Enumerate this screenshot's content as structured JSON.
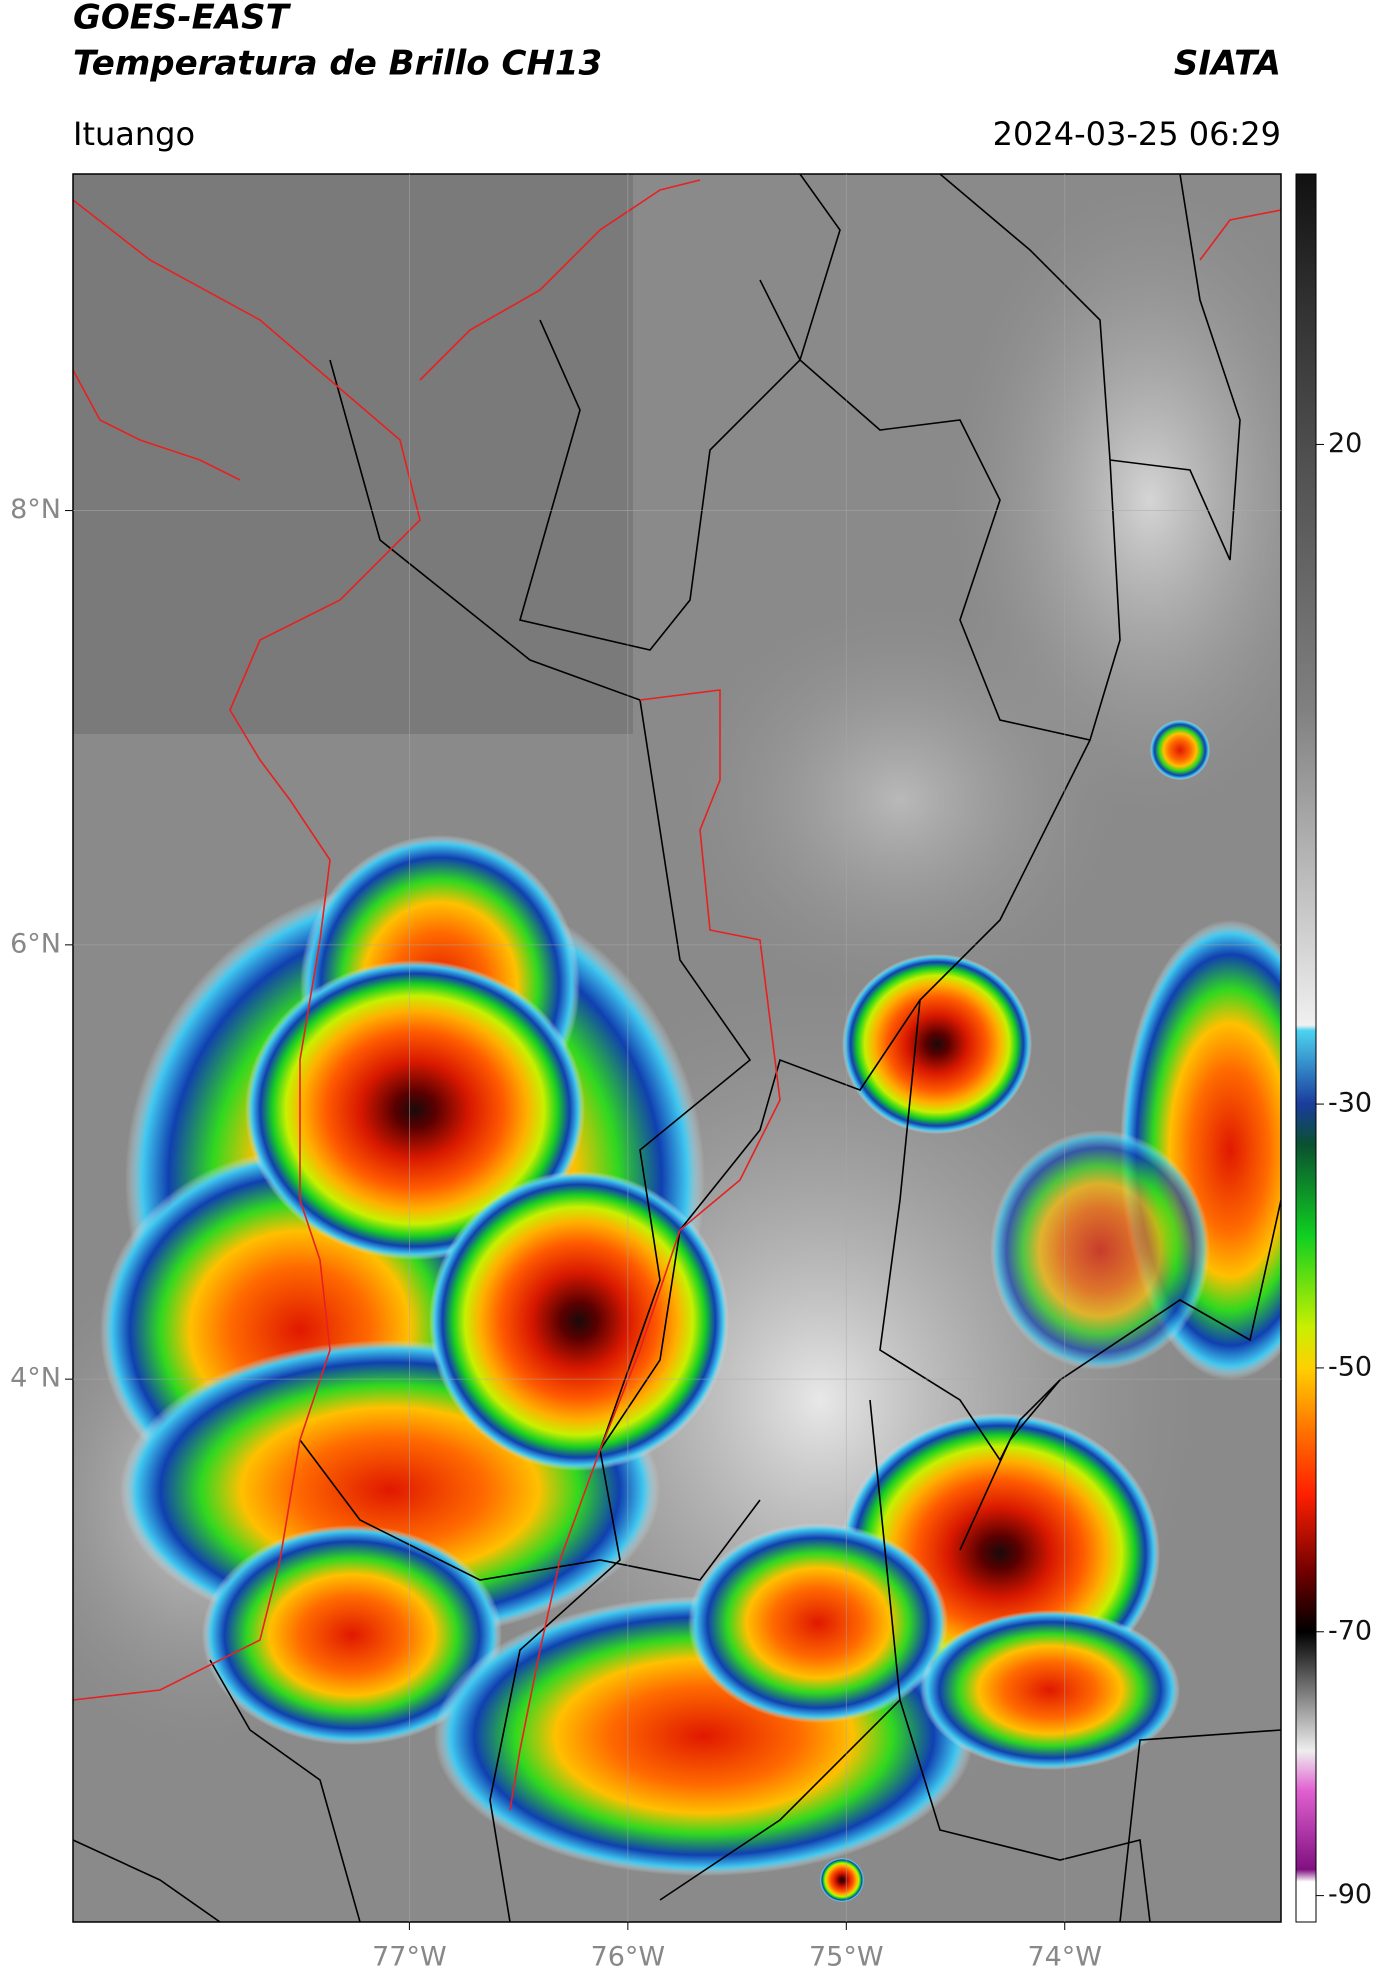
{
  "header": {
    "title": "GOES-EAST",
    "subtitle": "Temperatura de Brillo CH13",
    "brand": "SIATA",
    "location": "Ituango",
    "datetime": "2024-03-25 06:29"
  },
  "map": {
    "xlim": [
      -78.54,
      -73.01
    ],
    "ylim": [
      1.5,
      9.55
    ],
    "xticks": [
      {
        "value": -77,
        "label": "77°W"
      },
      {
        "value": -76,
        "label": "76°W"
      },
      {
        "value": -75,
        "label": "75°W"
      },
      {
        "value": -74,
        "label": "74°W"
      }
    ],
    "yticks": [
      {
        "value": 8,
        "label": "8°N"
      },
      {
        "value": 6,
        "label": "6°N"
      },
      {
        "value": 4,
        "label": "4°N"
      }
    ],
    "grid": true
  },
  "colorbar": {
    "lim": [
      -92,
      40.5
    ],
    "ticks": [
      20,
      -30,
      -50,
      -70,
      -90
    ]
  }
}
